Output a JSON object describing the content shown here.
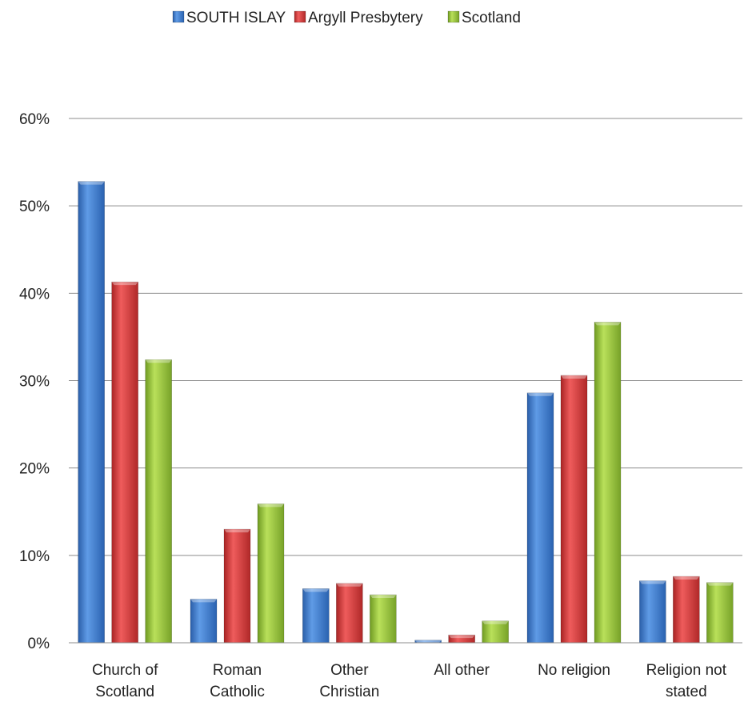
{
  "chart_data": {
    "type": "bar",
    "title": "",
    "xlabel": "",
    "ylabel": "",
    "categories": [
      [
        "Church of",
        "Scotland"
      ],
      [
        "Roman",
        "Catholic"
      ],
      [
        "Other",
        "Christian"
      ],
      [
        "All other"
      ],
      [
        "No religion"
      ],
      [
        "Religion not",
        "stated"
      ]
    ],
    "series": [
      {
        "name": "SOUTH ISLAY",
        "color": "#3a78c9",
        "values": [
          52.8,
          5.0,
          6.2,
          0.3,
          28.6,
          7.1
        ]
      },
      {
        "name": "Argyll Presbytery",
        "color": "#d13a3a",
        "values": [
          41.3,
          13.0,
          6.8,
          0.9,
          30.6,
          7.6
        ]
      },
      {
        "name": "Scotland",
        "color": "#94c23c",
        "values": [
          32.4,
          15.9,
          5.5,
          2.5,
          36.7,
          6.9
        ]
      }
    ],
    "ylim": [
      0,
      60
    ],
    "yticks": [
      "0%",
      "10%",
      "20%",
      "30%",
      "40%",
      "50%",
      "60%"
    ],
    "grid": true,
    "legend_position": "top"
  }
}
